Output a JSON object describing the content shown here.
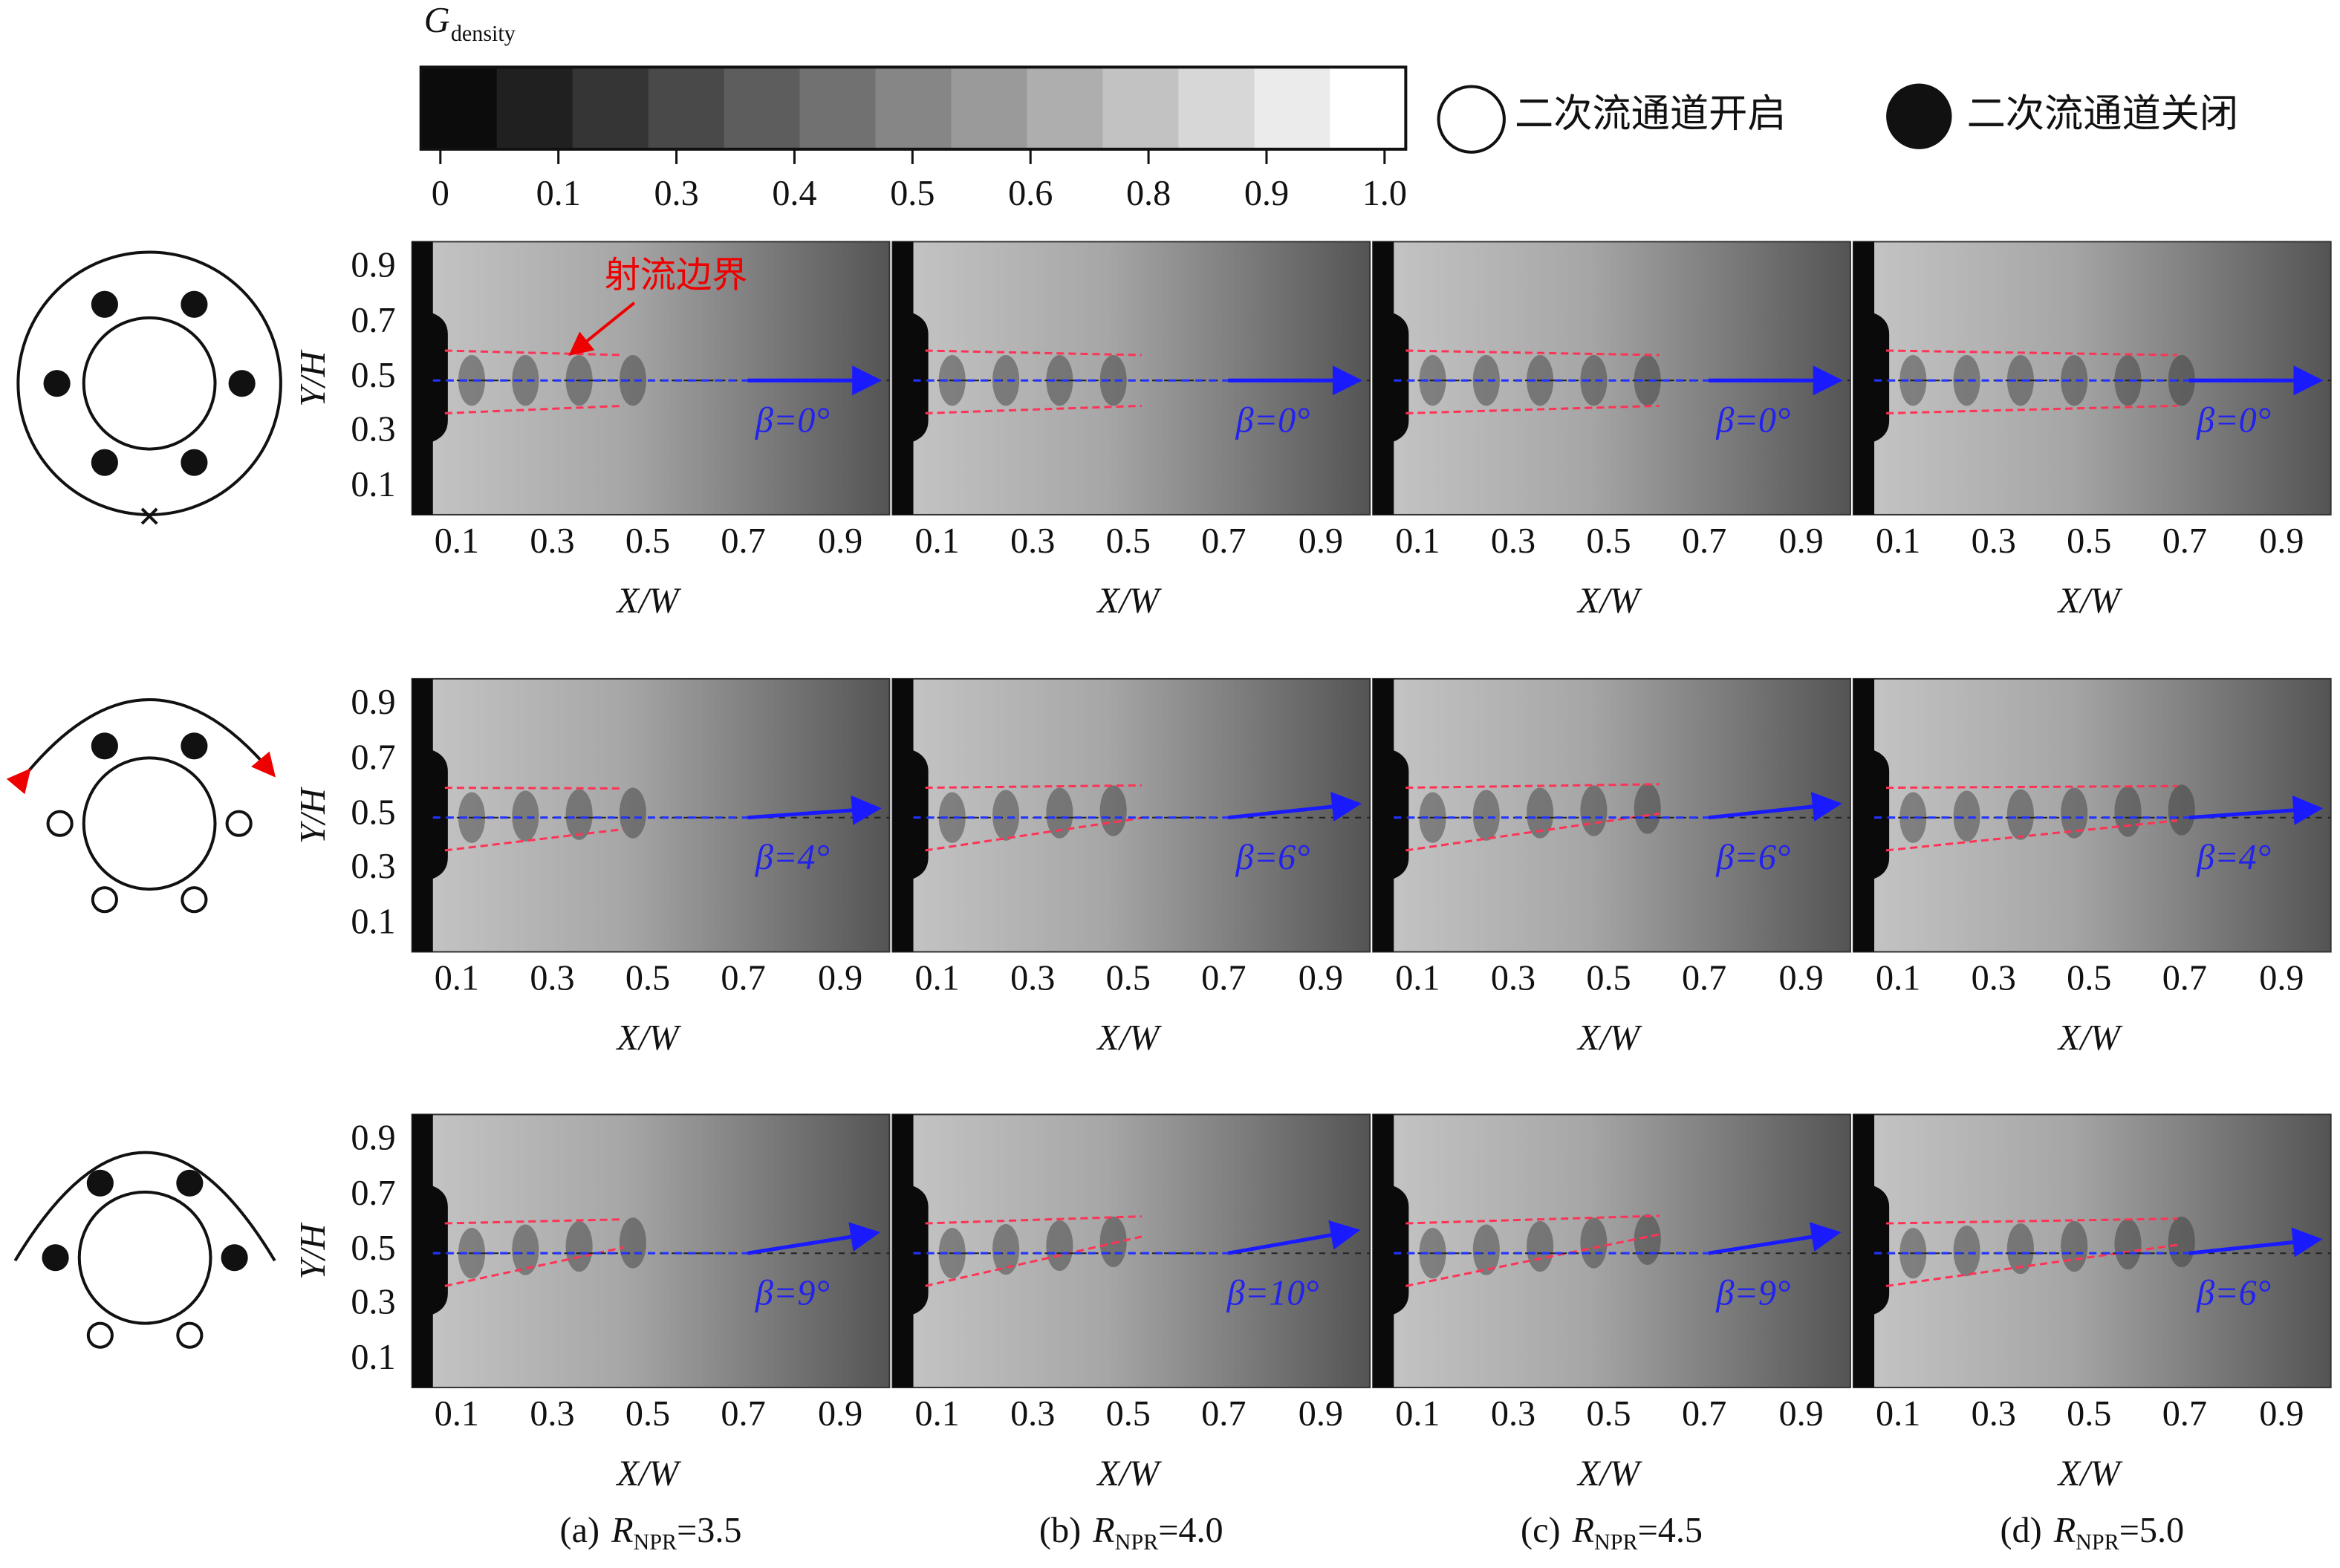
{
  "colorbar": {
    "symbol": "G",
    "subscript": "density",
    "ticks": [
      "0",
      "0.1",
      "0.3",
      "0.4",
      "0.5",
      "0.6",
      "0.8",
      "0.9",
      "1.0"
    ]
  },
  "legend": {
    "open": "二次流通道开启",
    "closed": "二次流通道关闭"
  },
  "annotation": "射流边界",
  "axes": {
    "x_label": "X/W",
    "y_label": "Y/H",
    "x_ticks": [
      "0.1",
      "0.3",
      "0.5",
      "0.7",
      "0.9"
    ],
    "y_ticks": [
      "0.9",
      "0.7",
      "0.5",
      "0.3",
      "0.1"
    ]
  },
  "rows": [
    {
      "panels": [
        {
          "beta": {
            "value": 0,
            "label": "β=0°"
          }
        },
        {
          "beta": {
            "value": 0,
            "label": "β=0°"
          }
        },
        {
          "beta": {
            "value": 0,
            "label": "β=0°"
          }
        },
        {
          "beta": {
            "value": 0,
            "label": "β=0°"
          }
        }
      ]
    },
    {
      "panels": [
        {
          "beta": {
            "value": 4,
            "label": "β=4°"
          }
        },
        {
          "beta": {
            "value": 6,
            "label": "β=6°"
          }
        },
        {
          "beta": {
            "value": 6,
            "label": "β=6°"
          }
        },
        {
          "beta": {
            "value": 4,
            "label": "β=4°"
          }
        }
      ]
    },
    {
      "panels": [
        {
          "beta": {
            "value": 9,
            "label": "β=9°"
          }
        },
        {
          "beta": {
            "value": 10,
            "label": "β=10°"
          }
        },
        {
          "beta": {
            "value": 9,
            "label": "β=9°"
          }
        },
        {
          "beta": {
            "value": 6,
            "label": "β=6°"
          }
        }
      ]
    }
  ],
  "columns": [
    {
      "prefix": "(a)",
      "symbol": "R",
      "subscript": "NPR",
      "suffix": "=3.5"
    },
    {
      "prefix": "(b)",
      "symbol": "R",
      "subscript": "NPR",
      "suffix": "=4.0"
    },
    {
      "prefix": "(c)",
      "symbol": "R",
      "subscript": "NPR",
      "suffix": "=4.5"
    },
    {
      "prefix": "(d)",
      "symbol": "R",
      "subscript": "NPR",
      "suffix": "=5.0"
    }
  ]
}
